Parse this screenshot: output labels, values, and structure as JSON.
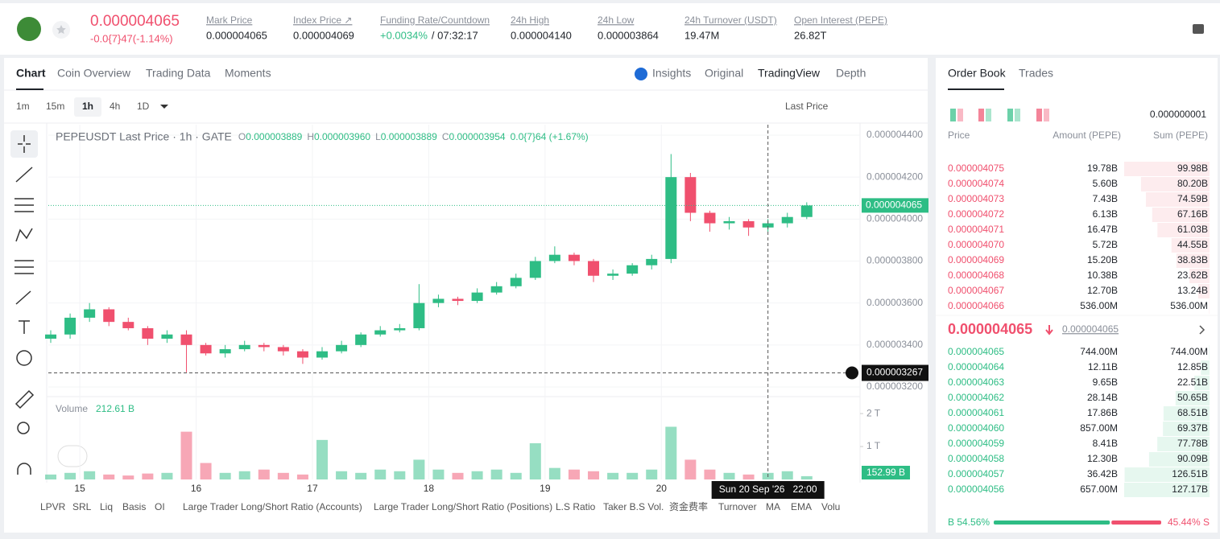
{
  "header": {
    "price": "0.000004065",
    "change": "-0.0{7}47(-1.14%)",
    "stats": [
      {
        "label": "Mark Price",
        "value": "0.000004065"
      },
      {
        "label": "Index Price ↗",
        "value": "0.000004069"
      },
      {
        "label": "Funding Rate/Countdown",
        "value": "+0.0034%",
        "extra": "/ 07:32:17"
      },
      {
        "label": "24h High",
        "value": "0.000004140"
      },
      {
        "label": "24h Low",
        "value": "0.000003864"
      },
      {
        "label": "24h Turnover (USDT)",
        "value": "19.47M"
      },
      {
        "label": "Open Interest (PEPE)",
        "value": "26.82T"
      }
    ]
  },
  "tabs": [
    "Chart",
    "Coin Overview",
    "Trading Data",
    "Moments"
  ],
  "views": [
    "Insights",
    "Original",
    "TradingView",
    "Depth"
  ],
  "intervals": [
    "1m",
    "15m",
    "1h",
    "4h",
    "1D"
  ],
  "price_source": "Last Price",
  "indicators": [
    "LPVR",
    "SRL",
    "Liq",
    "Basis",
    "OI",
    "Large Trader Long/Short Ratio (Accounts)",
    "Large Trader Long/Short Ratio (Positions)",
    "L.S Ratio",
    "Taker B.S Vol.",
    "资金费率",
    "Turnover",
    "MA",
    "EMA",
    "Volu"
  ],
  "chart_data": {
    "type": "candlestick",
    "title": "PEPEUSDT Last Price · 1h · GATE",
    "legend": [
      {
        "key": "O",
        "value": "0.000003889"
      },
      {
        "key": "H",
        "value": "0.000003960"
      },
      {
        "key": "L",
        "value": "0.000003889"
      },
      {
        "key": "C",
        "value": "0.000003954"
      }
    ],
    "legend_change": "0.0{7}64 (+1.67%)",
    "up_color": "#2ebd85",
    "down_color": "#f0506e",
    "x": [
      -6,
      -2,
      2,
      6,
      10,
      14,
      18,
      22,
      26,
      30,
      34,
      38,
      42,
      46,
      50,
      54,
      58,
      62,
      66,
      70,
      74,
      78,
      82,
      86,
      90,
      94,
      98,
      102,
      106,
      110,
      114,
      118,
      122,
      126,
      130,
      134,
      138,
      142,
      146,
      150
    ],
    "open": [
      3.43e-06,
      3.45e-06,
      3.53e-06,
      3.57e-06,
      3.51e-06,
      3.48e-06,
      3.43e-06,
      3.45e-06,
      3.4e-06,
      3.36e-06,
      3.38e-06,
      3.4e-06,
      3.39e-06,
      3.37e-06,
      3.34e-06,
      3.37e-06,
      3.4e-06,
      3.45e-06,
      3.47e-06,
      3.48e-06,
      3.6e-06,
      3.62e-06,
      3.61e-06,
      3.65e-06,
      3.68e-06,
      3.72e-06,
      3.8e-06,
      3.83e-06,
      3.8e-06,
      3.73e-06,
      3.74e-06,
      3.78e-06,
      3.81e-06,
      4.2e-06,
      4.03e-06,
      3.98e-06,
      3.99e-06,
      3.96e-06,
      3.98e-06,
      4.01e-06
    ],
    "high": [
      3.47e-06,
      3.55e-06,
      3.6e-06,
      3.58e-06,
      3.53e-06,
      3.49e-06,
      3.47e-06,
      3.47e-06,
      3.41e-06,
      3.4e-06,
      3.42e-06,
      3.41e-06,
      3.4e-06,
      3.38e-06,
      3.39e-06,
      3.42e-06,
      3.46e-06,
      3.49e-06,
      3.5e-06,
      3.69e-06,
      3.64e-06,
      3.63e-06,
      3.67e-06,
      3.7e-06,
      3.74e-06,
      3.82e-06,
      3.87e-06,
      3.84e-06,
      3.81e-06,
      3.76e-06,
      3.79e-06,
      3.83e-06,
      4.31e-06,
      4.22e-06,
      4.04e-06,
      4.01e-06,
      4e-06,
      4e-06,
      4.03e-06,
      4.08e-06
    ],
    "low": [
      3.41e-06,
      3.43e-06,
      3.51e-06,
      3.49e-06,
      3.47e-06,
      3.4e-06,
      3.41e-06,
      3.27e-06,
      3.35e-06,
      3.34e-06,
      3.37e-06,
      3.37e-06,
      3.35e-06,
      3.31e-06,
      3.33e-06,
      3.36e-06,
      3.39e-06,
      3.44e-06,
      3.46e-06,
      3.47e-06,
      3.58e-06,
      3.59e-06,
      3.6e-06,
      3.64e-06,
      3.67e-06,
      3.71e-06,
      3.79e-06,
      3.78e-06,
      3.7e-06,
      3.71e-06,
      3.73e-06,
      3.76e-06,
      3.79e-06,
      3.99e-06,
      3.94e-06,
      3.95e-06,
      3.92e-06,
      3.94e-06,
      3.96e-06,
      4e-06
    ],
    "close": [
      3.45e-06,
      3.53e-06,
      3.57e-06,
      3.51e-06,
      3.48e-06,
      3.43e-06,
      3.45e-06,
      3.4e-06,
      3.36e-06,
      3.38e-06,
      3.4e-06,
      3.39e-06,
      3.37e-06,
      3.34e-06,
      3.37e-06,
      3.4e-06,
      3.45e-06,
      3.47e-06,
      3.48e-06,
      3.6e-06,
      3.62e-06,
      3.61e-06,
      3.65e-06,
      3.68e-06,
      3.72e-06,
      3.8e-06,
      3.83e-06,
      3.8e-06,
      3.73e-06,
      3.74e-06,
      3.78e-06,
      3.81e-06,
      4.2e-06,
      4.03e-06,
      3.98e-06,
      3.99e-06,
      3.96e-06,
      3.98e-06,
      4.01e-06,
      4.065e-06
    ],
    "volume": [
      0.15,
      0.2,
      0.25,
      0.15,
      0.12,
      0.18,
      0.2,
      1.45,
      0.5,
      0.2,
      0.25,
      0.3,
      0.2,
      0.15,
      1.2,
      0.25,
      0.2,
      0.3,
      0.25,
      0.6,
      0.3,
      0.2,
      0.25,
      0.3,
      0.2,
      1.1,
      0.35,
      0.3,
      0.25,
      0.2,
      0.2,
      0.3,
      1.6,
      0.6,
      0.3,
      0.2,
      0.15,
      0.2,
      0.25,
      0.1
    ],
    "last_price_label": "0.000004065",
    "volume_title": "Volume",
    "volume_total": "212.61 B",
    "volume_last": "152.99 B",
    "xlim": [
      -6.5,
      161
    ],
    "xticks": [
      {
        "value": 0,
        "label": "15"
      },
      {
        "value": 24,
        "label": "16"
      },
      {
        "value": 48,
        "label": "17"
      },
      {
        "value": 72,
        "label": "18"
      },
      {
        "value": 96,
        "label": "19"
      },
      {
        "value": 120,
        "label": "20"
      }
    ],
    "ylim": [
      3.2e-06,
      4.4e-06
    ],
    "yticks": [
      {
        "value": 4.4e-06,
        "label": "0.000004400"
      },
      {
        "value": 4.2e-06,
        "label": "0.000004200"
      },
      {
        "value": 4e-06,
        "label": "0.000004000"
      },
      {
        "value": 3.8e-06,
        "label": "0.000003800"
      },
      {
        "value": 3.6e-06,
        "label": "0.000003600"
      },
      {
        "value": 3.4e-06,
        "label": "0.000003400"
      },
      {
        "value": 3.2e-06,
        "label": "0.000003200"
      }
    ],
    "y2lim": [
      0,
      2.1
    ],
    "y2ticks": [
      {
        "value": 2,
        "label": "2 T"
      },
      {
        "value": 1,
        "label": "1 T"
      }
    ],
    "grid": true,
    "crosshair": {
      "x": 142,
      "price": {
        "value": 3.267e-06,
        "label": "0.000003267"
      },
      "time": "Sun 20 Sep '26   22:00"
    }
  },
  "order_book": {
    "tabs": [
      "Order Book",
      "Trades"
    ],
    "precision": "0.000000001",
    "columns": [
      "Price",
      "Amount (PEPE)",
      "Sum (PEPE)"
    ],
    "asks": [
      {
        "price": "0.000004075",
        "amount": "19.78B",
        "sum": {
          "value": 99.98,
          "label": "99.98B"
        }
      },
      {
        "price": "0.000004074",
        "amount": "5.60B",
        "sum": {
          "value": 80.2,
          "label": "80.20B"
        }
      },
      {
        "price": "0.000004073",
        "amount": "7.43B",
        "sum": {
          "value": 74.59,
          "label": "74.59B"
        }
      },
      {
        "price": "0.000004072",
        "amount": "6.13B",
        "sum": {
          "value": 67.16,
          "label": "67.16B"
        }
      },
      {
        "price": "0.000004071",
        "amount": "16.47B",
        "sum": {
          "value": 61.03,
          "label": "61.03B"
        }
      },
      {
        "price": "0.000004070",
        "amount": "5.72B",
        "sum": {
          "value": 44.55,
          "label": "44.55B"
        }
      },
      {
        "price": "0.000004069",
        "amount": "15.20B",
        "sum": {
          "value": 38.83,
          "label": "38.83B"
        }
      },
      {
        "price": "0.000004068",
        "amount": "10.38B",
        "sum": {
          "value": 23.62,
          "label": "23.62B"
        }
      },
      {
        "price": "0.000004067",
        "amount": "12.70B",
        "sum": {
          "value": 13.24,
          "label": "13.24B"
        }
      },
      {
        "price": "0.000004066",
        "amount": "536.00M",
        "sum": {
          "value": 0.536,
          "label": "536.00M"
        }
      }
    ],
    "mid_price": "0.000004065",
    "mark_price": "0.000004065",
    "bids": [
      {
        "price": "0.000004065",
        "amount": "744.00M",
        "sum": {
          "value": 0.744,
          "label": "744.00M"
        }
      },
      {
        "price": "0.000004064",
        "amount": "12.11B",
        "sum": {
          "value": 12.85,
          "label": "12.85B"
        }
      },
      {
        "price": "0.000004063",
        "amount": "9.65B",
        "sum": {
          "value": 22.51,
          "label": "22.51B"
        }
      },
      {
        "price": "0.000004062",
        "amount": "28.14B",
        "sum": {
          "value": 50.65,
          "label": "50.65B"
        }
      },
      {
        "price": "0.000004061",
        "amount": "17.86B",
        "sum": {
          "value": 68.51,
          "label": "68.51B"
        }
      },
      {
        "price": "0.000004060",
        "amount": "857.00M",
        "sum": {
          "value": 69.37,
          "label": "69.37B"
        }
      },
      {
        "price": "0.000004059",
        "amount": "8.41B",
        "sum": {
          "value": 77.78,
          "label": "77.78B"
        }
      },
      {
        "price": "0.000004058",
        "amount": "12.30B",
        "sum": {
          "value": 90.09,
          "label": "90.09B"
        }
      },
      {
        "price": "0.000004057",
        "amount": "36.42B",
        "sum": {
          "value": 126.51,
          "label": "126.51B"
        }
      },
      {
        "price": "0.000004056",
        "amount": "657.00M",
        "sum": {
          "value": 127.17,
          "label": "127.17B"
        }
      }
    ],
    "ratio": {
      "buy": {
        "value": 54.56,
        "label": "B 54.56%"
      },
      "sell": {
        "value": 45.44,
        "label": "45.44% S"
      }
    }
  }
}
